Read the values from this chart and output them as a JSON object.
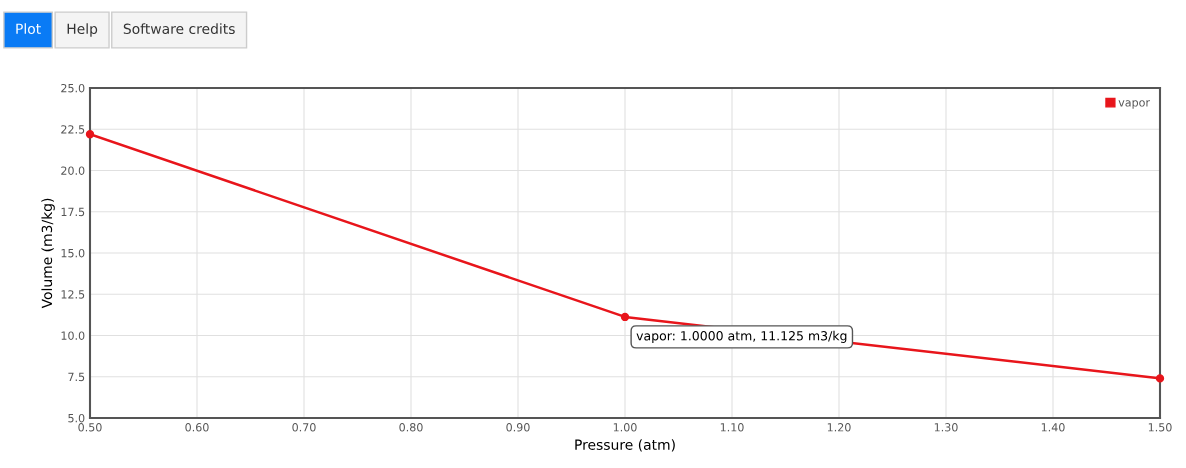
{
  "chart_data": {
    "type": "line",
    "xlabel": "Pressure (atm)",
    "ylabel": "Volume (m3/kg)",
    "x": [
      0.5,
      1.0,
      1.5
    ],
    "series": [
      {
        "name": "vapor",
        "color": "#e8151b",
        "values": [
          22.2,
          11.125,
          7.4
        ]
      }
    ],
    "xlim": [
      0.5,
      1.5
    ],
    "xticks": [
      {
        "value": 0.5,
        "label": "0.50"
      },
      {
        "value": 0.6,
        "label": "0.60"
      },
      {
        "value": 0.7,
        "label": "0.70"
      },
      {
        "value": 0.8,
        "label": "0.80"
      },
      {
        "value": 0.9,
        "label": "0.90"
      },
      {
        "value": 1.0,
        "label": "1.00"
      },
      {
        "value": 1.1,
        "label": "1.10"
      },
      {
        "value": 1.2,
        "label": "1.20"
      },
      {
        "value": 1.3,
        "label": "1.30"
      },
      {
        "value": 1.4,
        "label": "1.40"
      },
      {
        "value": 1.5,
        "label": "1.50"
      }
    ],
    "ylim": [
      5,
      25
    ],
    "yticks": [
      {
        "value": 5,
        "label": "5.0"
      },
      {
        "value": 7.5,
        "label": "7.5"
      },
      {
        "value": 10,
        "label": "10.0"
      },
      {
        "value": 12.5,
        "label": "12.5"
      },
      {
        "value": 15,
        "label": "15.0"
      },
      {
        "value": 17.5,
        "label": "17.5"
      },
      {
        "value": 20,
        "label": "20.0"
      },
      {
        "value": 22.5,
        "label": "22.5"
      },
      {
        "value": 25,
        "label": "25.0"
      }
    ],
    "grid": true,
    "legend": "top right",
    "marker": "circle",
    "line_style": "solid",
    "annotations": [
      "Plot",
      "Help",
      "Software credits",
      {
        "text": "vapor: 1.0000 atm, 11.125 m3/kg",
        "x": 1.0,
        "y": 11.125
      }
    ]
  }
}
